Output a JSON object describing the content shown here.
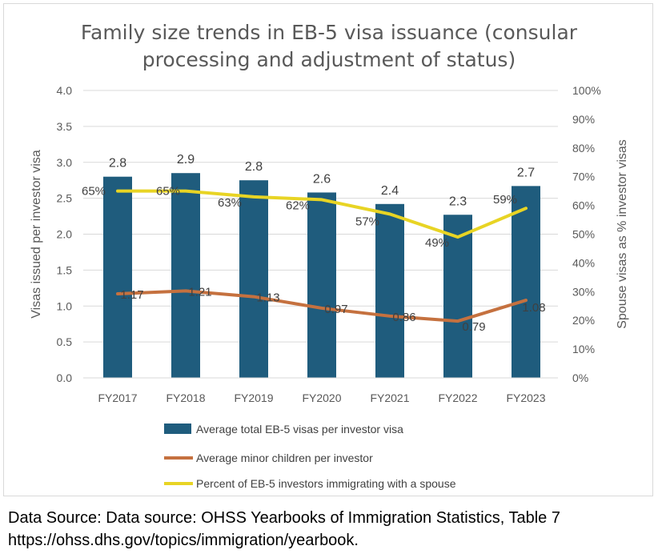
{
  "chart_data": {
    "type": "bar",
    "title_line1": "Family size trends in EB-5 visa issuance (consular",
    "title_line2": "processing and adjustment of status)",
    "categories": [
      "FY2017",
      "FY2018",
      "FY2019",
      "FY2020",
      "FY2021",
      "FY2022",
      "FY2023"
    ],
    "ylabel_left": "Visas issued per investor visa",
    "ylabel_right": "Spouse visas as % investor visas",
    "left_ticks": [
      "0.0",
      "0.5",
      "1.0",
      "1.5",
      "2.0",
      "2.5",
      "3.0",
      "3.5",
      "4.0"
    ],
    "right_ticks": [
      "0%",
      "10%",
      "20%",
      "30%",
      "40%",
      "50%",
      "60%",
      "70%",
      "80%",
      "90%",
      "100%"
    ],
    "ylim_left": [
      0,
      4
    ],
    "ylim_right": [
      0,
      100
    ],
    "grid": true,
    "series": [
      {
        "name": "Average total EB-5 visas per investor visa",
        "kind": "bar",
        "axis": "left",
        "color": "#1f5c7d",
        "values": [
          2.8,
          2.85,
          2.75,
          2.58,
          2.42,
          2.27,
          2.67
        ],
        "labels": [
          "2.8",
          "2.9",
          "2.8",
          "2.6",
          "2.4",
          "2.3",
          "2.7"
        ]
      },
      {
        "name": "Average minor children per investor",
        "kind": "line",
        "axis": "left",
        "color": "#c5713f",
        "values": [
          1.17,
          1.21,
          1.13,
          0.97,
          0.86,
          0.79,
          1.08
        ],
        "labels": [
          "1.17",
          "1.21",
          "1.13",
          "0.97",
          "0.86",
          "0.79",
          "1.08"
        ]
      },
      {
        "name": "Percent of EB-5 investors immigrating with a spouse",
        "kind": "line",
        "axis": "right",
        "color": "#e8d424",
        "values": [
          65,
          65,
          63,
          62,
          57,
          49,
          59
        ],
        "labels": [
          "65%",
          "65%",
          "63%",
          "62%",
          "57%",
          "49%",
          "59%"
        ]
      }
    ]
  },
  "source": {
    "line1": "Data Source: Data source: OHSS Yearbooks of Immigration Statistics, Table 7",
    "line2": "https://ohss.dhs.gov/topics/immigration/yearbook."
  }
}
